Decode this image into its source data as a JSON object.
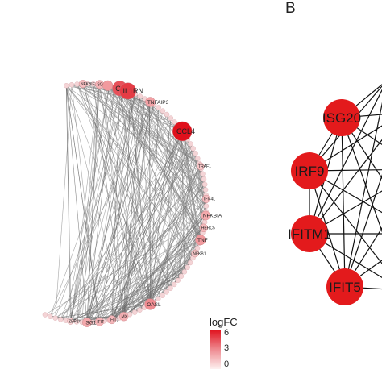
{
  "panels": {
    "b_label": "B"
  },
  "colors": {
    "edge": "#8a8a8a",
    "dark_edge": "#111111",
    "high": "#e0101c",
    "low": "#fbeaea",
    "node_b": "#e31a1c"
  },
  "network_a": {
    "nodes": [
      {
        "label": "NFKBIE",
        "logfc": 1.2
      },
      {
        "label": "SOCS3",
        "logfc": 1.5
      },
      {
        "label": "",
        "logfc": 2.2
      },
      {
        "label": "CCL",
        "logfc": 4.2
      },
      {
        "label": "IL1RN",
        "logfc": 4.8
      },
      {
        "label": "TNFAIP3",
        "logfc": 2.0
      },
      {
        "label": "CCL4",
        "logfc": 6.0
      },
      {
        "label": "TRAF1",
        "logfc": 1.0
      },
      {
        "label": "IFI44L",
        "logfc": 1.2
      },
      {
        "label": "NFKBIA",
        "logfc": 1.8
      },
      {
        "label": "HERC5",
        "logfc": 1.3
      },
      {
        "label": "TNF",
        "logfc": 2.2
      },
      {
        "label": "NFKB1",
        "logfc": 1.0
      },
      {
        "label": "OASL",
        "logfc": 2.6
      },
      {
        "label": "MX",
        "logfc": 1.6
      },
      {
        "label": "IFIT3",
        "logfc": 1.4
      },
      {
        "label": "IFIT",
        "logfc": 1.5
      },
      {
        "label": "ISG1",
        "logfc": 1.8
      },
      {
        "label": "ZBP1",
        "logfc": 0.6
      }
    ]
  },
  "network_b": {
    "nodes": [
      {
        "label": "ISG20"
      },
      {
        "label": "IRF9"
      },
      {
        "label": "IFITM1"
      },
      {
        "label": "IFIT5"
      }
    ]
  },
  "legend": {
    "title": "logFC",
    "ticks": [
      "6",
      "3",
      "0"
    ],
    "range": [
      0,
      6
    ]
  }
}
